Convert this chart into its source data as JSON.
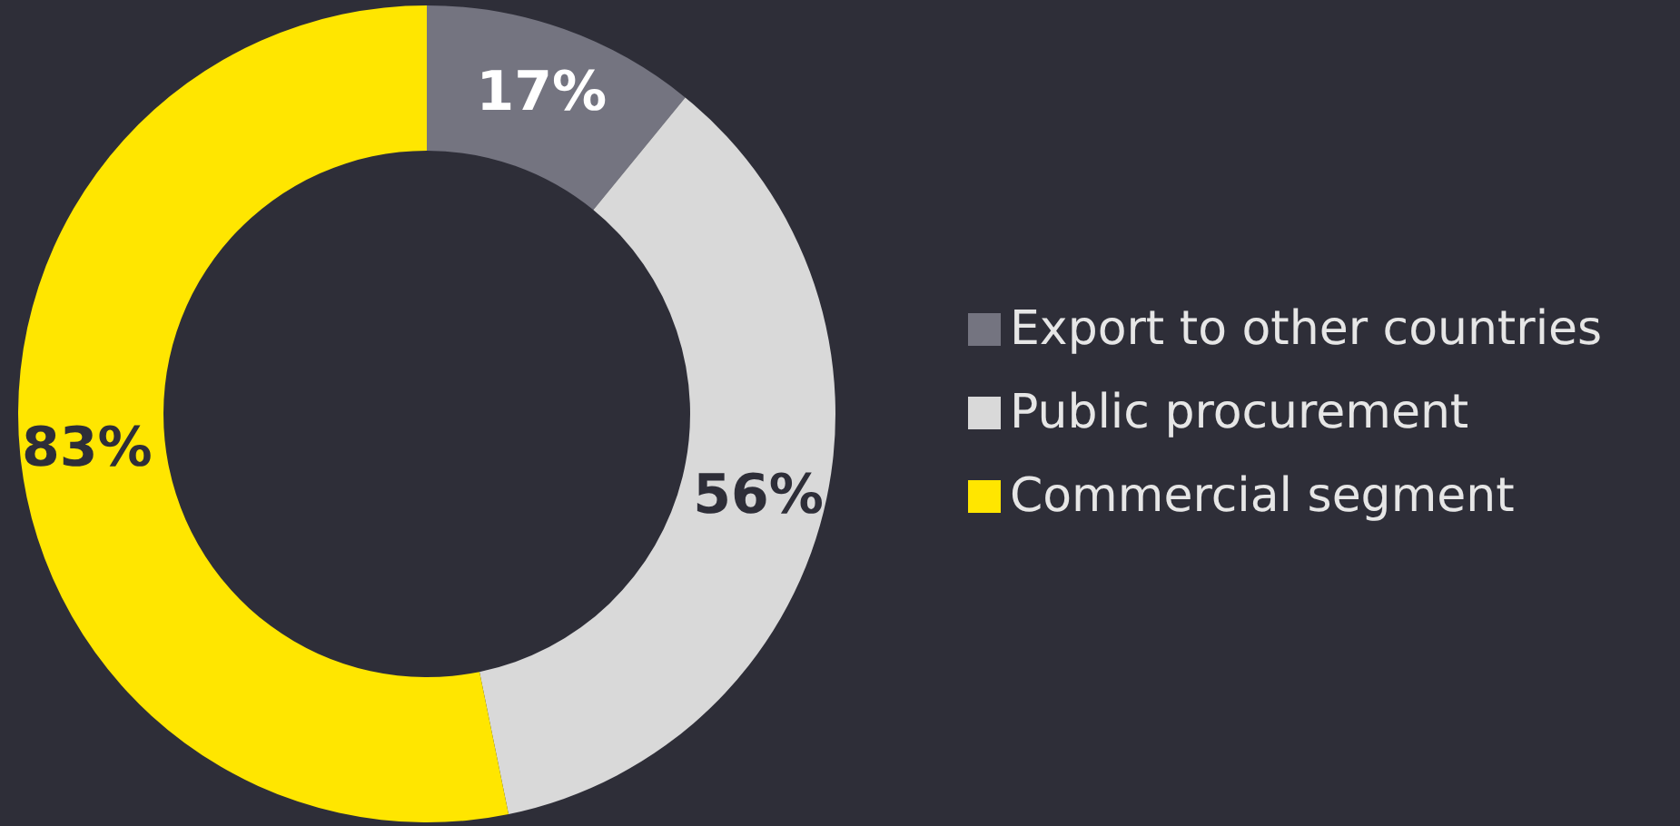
{
  "chart_data": {
    "type": "donut",
    "categories": [
      "Export to other countries",
      "Public procurement",
      "Commercial segment"
    ],
    "values": [
      17,
      56,
      83
    ],
    "colors": [
      "#747480",
      "#d9d9d9",
      "#ffe600"
    ],
    "value_labels": [
      "17%",
      "56%",
      "83%"
    ],
    "legend": "right"
  }
}
